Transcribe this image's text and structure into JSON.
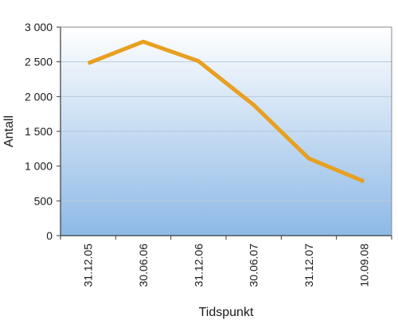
{
  "chart_data": {
    "type": "line",
    "title": "",
    "xlabel": "Tidspunkt",
    "ylabel": "Antall",
    "categories": [
      "31.12.05",
      "30.06.06",
      "31.12.06",
      "30.06.07",
      "31.12.07",
      "10.09.08"
    ],
    "series": [
      {
        "values": [
          2480,
          2790,
          2510,
          1880,
          1110,
          780
        ],
        "color": "#e8a020"
      }
    ],
    "ylim": [
      0,
      3000
    ],
    "yticks": [
      0,
      500,
      1000,
      1500,
      2000,
      2500,
      3000
    ],
    "ytick_labels": [
      "0",
      "500",
      "1 000",
      "1 500",
      "2 000",
      "2 500",
      "3 000"
    ],
    "grid": true,
    "legend": "none",
    "colors": {
      "plot_bg_top": "#ffffff",
      "plot_bg_bottom": "#8db9e6",
      "gridline": "#b9c9dc",
      "axis": "#3a3a3a"
    }
  }
}
